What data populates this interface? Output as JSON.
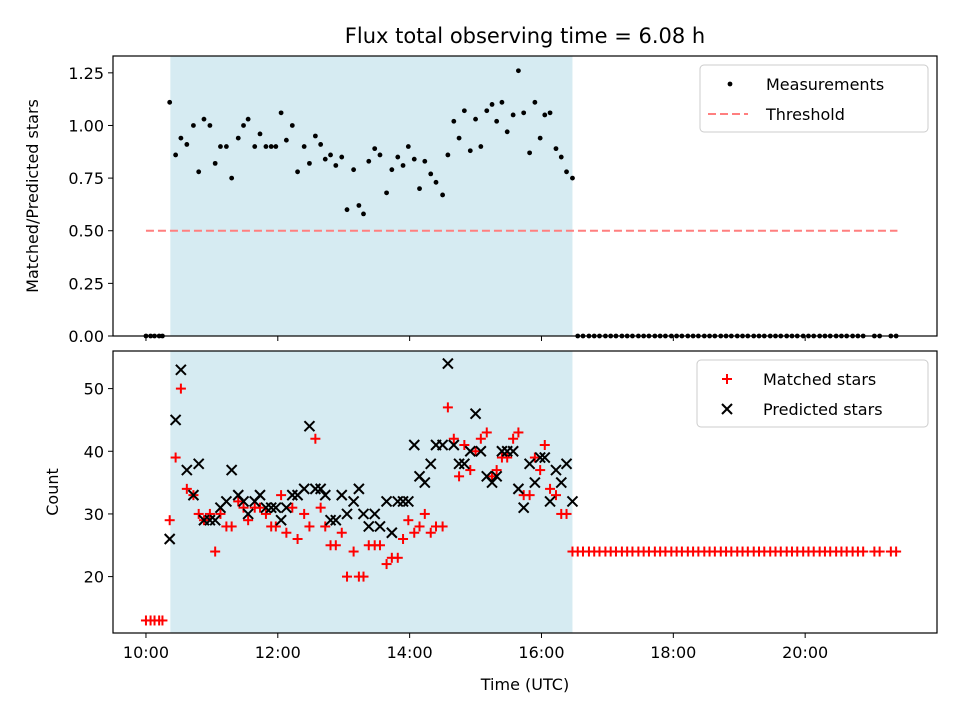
{
  "title": "Flux total observing time = 6.08 h",
  "colors": {
    "shade": "#add8e6",
    "measurement": "#000000",
    "threshold": "#ff7f7f",
    "matched": "#ff0000",
    "predicted": "#000000"
  },
  "chart_data": [
    {
      "type": "scatter",
      "ylabel": "Matched/Predicted stars",
      "xlabel": "",
      "x_unit": "hours (UTC)",
      "xlim": [
        9.5,
        22.0
      ],
      "ylim": [
        0.0,
        1.33
      ],
      "y_ticks": [
        0.0,
        0.25,
        0.5,
        0.75,
        1.0,
        1.25
      ],
      "y_tick_labels": [
        "0.00",
        "0.25",
        "0.50",
        "0.75",
        "1.00",
        "1.25"
      ],
      "x_ticks": [
        10,
        12,
        14,
        16,
        18,
        20
      ],
      "shaded_region_x": [
        10.37,
        16.47
      ],
      "legend": {
        "position": "top-right",
        "entries": [
          "Measurements",
          "Threshold"
        ]
      },
      "threshold": {
        "name": "Threshold",
        "y": 0.5,
        "x_range": [
          10.0,
          21.4
        ]
      },
      "series": [
        {
          "name": "Measurements",
          "x": [
            10.0,
            10.07,
            10.13,
            10.2,
            10.25,
            10.36,
            10.45,
            10.53,
            10.62,
            10.72,
            10.8,
            10.88,
            10.97,
            11.05,
            11.13,
            11.22,
            11.3,
            11.4,
            11.48,
            11.55,
            11.65,
            11.73,
            11.82,
            11.9,
            11.97,
            12.05,
            12.13,
            12.22,
            12.3,
            12.4,
            12.48,
            12.57,
            12.65,
            12.72,
            12.8,
            12.88,
            12.97,
            13.05,
            13.15,
            13.23,
            13.3,
            13.38,
            13.47,
            13.55,
            13.65,
            13.73,
            13.82,
            13.9,
            13.98,
            14.07,
            14.15,
            14.23,
            14.32,
            14.4,
            14.5,
            14.58,
            14.67,
            14.75,
            14.83,
            14.92,
            15.0,
            15.08,
            15.17,
            15.25,
            15.32,
            15.4,
            15.48,
            15.57,
            15.65,
            15.73,
            15.82,
            15.9,
            15.98,
            16.05,
            16.13,
            16.22,
            16.3,
            16.38,
            16.47
          ],
          "y": [
            0.0,
            0.0,
            0.0,
            0.0,
            0.0,
            1.11,
            0.86,
            0.94,
            0.91,
            1.0,
            0.78,
            1.03,
            1.0,
            0.82,
            0.9,
            0.9,
            0.75,
            0.94,
            1.0,
            1.03,
            0.9,
            0.96,
            0.9,
            0.9,
            0.9,
            1.06,
            0.93,
            1.0,
            0.78,
            0.9,
            0.82,
            0.95,
            0.91,
            0.84,
            0.86,
            0.81,
            0.85,
            0.6,
            0.79,
            0.62,
            0.58,
            0.83,
            0.89,
            0.86,
            0.68,
            0.79,
            0.85,
            0.81,
            0.9,
            0.84,
            0.7,
            0.83,
            0.77,
            0.73,
            0.67,
            0.86,
            1.02,
            0.94,
            1.07,
            0.88,
            1.03,
            0.9,
            1.07,
            1.1,
            1.02,
            1.11,
            0.97,
            1.05,
            1.26,
            1.06,
            0.87,
            1.11,
            0.94,
            1.05,
            1.06,
            0.89,
            0.85,
            0.78,
            0.75
          ]
        },
        {
          "name": "",
          "x": [
            16.55,
            16.63,
            16.72,
            16.8,
            16.88,
            16.97,
            17.05,
            17.13,
            17.22,
            17.3,
            17.38,
            17.47,
            17.55,
            17.63,
            17.72,
            17.8,
            17.88,
            17.97,
            18.05,
            18.13,
            18.22,
            18.3,
            18.38,
            18.47,
            18.55,
            18.63,
            18.72,
            18.8,
            18.88,
            18.97,
            19.05,
            19.13,
            19.22,
            19.3,
            19.38,
            19.47,
            19.55,
            19.63,
            19.72,
            19.8,
            19.88,
            19.97,
            20.05,
            20.13,
            20.22,
            20.3,
            20.38,
            20.47,
            20.55,
            20.63,
            20.72,
            20.8,
            20.88,
            21.05,
            21.13,
            21.3,
            21.38
          ],
          "y": [
            0.0,
            0.0,
            0.0,
            0.0,
            0.0,
            0.0,
            0.0,
            0.0,
            0.0,
            0.0,
            0.0,
            0.0,
            0.0,
            0.0,
            0.0,
            0.0,
            0.0,
            0.0,
            0.0,
            0.0,
            0.0,
            0.0,
            0.0,
            0.0,
            0.0,
            0.0,
            0.0,
            0.0,
            0.0,
            0.0,
            0.0,
            0.0,
            0.0,
            0.0,
            0.0,
            0.0,
            0.0,
            0.0,
            0.0,
            0.0,
            0.0,
            0.0,
            0.0,
            0.0,
            0.0,
            0.0,
            0.0,
            0.0,
            0.0,
            0.0,
            0.0,
            0.0,
            0.0,
            0.0,
            0.0,
            0.0,
            0.0
          ]
        }
      ]
    },
    {
      "type": "scatter",
      "ylabel": "Count",
      "xlabel": "Time (UTC)",
      "x_unit": "hours (UTC)",
      "xlim": [
        9.5,
        22.0
      ],
      "ylim": [
        11,
        56
      ],
      "y_ticks": [
        20,
        30,
        40,
        50
      ],
      "y_tick_labels": [
        "20",
        "30",
        "40",
        "50"
      ],
      "x_ticks": [
        10,
        12,
        14,
        16,
        18,
        20
      ],
      "x_tick_labels": [
        "10:00",
        "12:00",
        "14:00",
        "16:00",
        "18:00",
        "20:00"
      ],
      "shaded_region_x": [
        10.37,
        16.47
      ],
      "legend": {
        "position": "top-right",
        "entries": [
          "Matched stars",
          "Predicted stars"
        ]
      },
      "series": [
        {
          "name": "Matched stars",
          "x": [
            10.0,
            10.07,
            10.13,
            10.2,
            10.25,
            10.36,
            10.45,
            10.53,
            10.62,
            10.72,
            10.8,
            10.88,
            10.97,
            11.05,
            11.13,
            11.22,
            11.3,
            11.4,
            11.48,
            11.55,
            11.65,
            11.73,
            11.82,
            11.9,
            11.97,
            12.05,
            12.13,
            12.22,
            12.3,
            12.4,
            12.48,
            12.57,
            12.65,
            12.72,
            12.8,
            12.88,
            12.97,
            13.05,
            13.15,
            13.23,
            13.3,
            13.38,
            13.47,
            13.55,
            13.65,
            13.73,
            13.82,
            13.9,
            13.98,
            14.07,
            14.15,
            14.23,
            14.32,
            14.4,
            14.5,
            14.58,
            14.67,
            14.75,
            14.83,
            14.92,
            15.0,
            15.08,
            15.17,
            15.25,
            15.32,
            15.4,
            15.48,
            15.57,
            15.65,
            15.73,
            15.82,
            15.9,
            15.98,
            16.05,
            16.13,
            16.22,
            16.3,
            16.38,
            16.47,
            16.55,
            16.63,
            16.72,
            16.8,
            16.88,
            16.97,
            17.05,
            17.13,
            17.22,
            17.3,
            17.38,
            17.47,
            17.55,
            17.63,
            17.72,
            17.8,
            17.88,
            17.97,
            18.05,
            18.13,
            18.22,
            18.3,
            18.38,
            18.47,
            18.55,
            18.63,
            18.72,
            18.8,
            18.88,
            18.97,
            19.05,
            19.13,
            19.22,
            19.3,
            19.38,
            19.47,
            19.55,
            19.63,
            19.72,
            19.8,
            19.88,
            19.97,
            20.05,
            20.13,
            20.22,
            20.3,
            20.38,
            20.47,
            20.55,
            20.63,
            20.72,
            20.8,
            20.88,
            21.05,
            21.13,
            21.3,
            21.38
          ],
          "y": [
            13,
            13,
            13,
            13,
            13,
            29,
            39,
            50,
            34,
            33,
            30,
            29,
            30,
            24,
            30,
            28,
            28,
            32,
            31,
            29,
            31,
            31,
            30,
            28,
            28,
            33,
            27,
            31,
            26,
            30,
            28,
            42,
            31,
            28,
            25,
            25,
            27,
            20,
            24,
            20,
            20,
            25,
            25,
            25,
            22,
            23,
            23,
            26,
            29,
            27,
            28,
            30,
            27,
            28,
            28,
            47,
            42,
            36,
            41,
            37,
            40,
            42,
            43,
            36,
            37,
            39,
            39,
            42,
            43,
            33,
            33,
            39,
            37,
            41,
            34,
            33,
            30,
            30,
            24,
            24,
            24,
            24,
            24,
            24,
            24,
            24,
            24,
            24,
            24,
            24,
            24,
            24,
            24,
            24,
            24,
            24,
            24,
            24,
            24,
            24,
            24,
            24,
            24,
            24,
            24,
            24,
            24,
            24,
            24,
            24,
            24,
            24,
            24,
            24,
            24,
            24,
            24,
            24,
            24,
            24,
            24,
            24,
            24,
            24,
            24,
            24,
            24,
            24,
            24,
            24,
            24,
            24,
            24,
            24,
            24,
            24
          ]
        },
        {
          "name": "Predicted stars",
          "x": [
            10.36,
            10.45,
            10.53,
            10.62,
            10.72,
            10.8,
            10.88,
            10.97,
            11.05,
            11.13,
            11.22,
            11.3,
            11.4,
            11.48,
            11.55,
            11.65,
            11.73,
            11.82,
            11.9,
            11.97,
            12.05,
            12.13,
            12.22,
            12.3,
            12.4,
            12.48,
            12.57,
            12.65,
            12.72,
            12.8,
            12.88,
            12.97,
            13.05,
            13.15,
            13.23,
            13.3,
            13.38,
            13.47,
            13.55,
            13.65,
            13.73,
            13.82,
            13.9,
            13.98,
            14.07,
            14.15,
            14.23,
            14.32,
            14.4,
            14.5,
            14.58,
            14.67,
            14.75,
            14.83,
            14.92,
            15.0,
            15.08,
            15.17,
            15.25,
            15.32,
            15.4,
            15.48,
            15.57,
            15.65,
            15.73,
            15.82,
            15.9,
            15.98,
            16.05,
            16.13,
            16.22,
            16.3,
            16.38,
            16.47
          ],
          "y": [
            26,
            45,
            53,
            37,
            33,
            38,
            29,
            29,
            29,
            31,
            32,
            37,
            33,
            32,
            30,
            32,
            33,
            31,
            31,
            31,
            29,
            31,
            33,
            33,
            34,
            44,
            34,
            34,
            33,
            29,
            29,
            33,
            30,
            32,
            34,
            30,
            28,
            30,
            28,
            32,
            27,
            32,
            32,
            32,
            41,
            36,
            35,
            38,
            41,
            41,
            54,
            41,
            38,
            38,
            40,
            46,
            40,
            36,
            35,
            36,
            40,
            40,
            40,
            34,
            31,
            38,
            35,
            39,
            39,
            32,
            37,
            35,
            38,
            32
          ]
        }
      ]
    }
  ]
}
